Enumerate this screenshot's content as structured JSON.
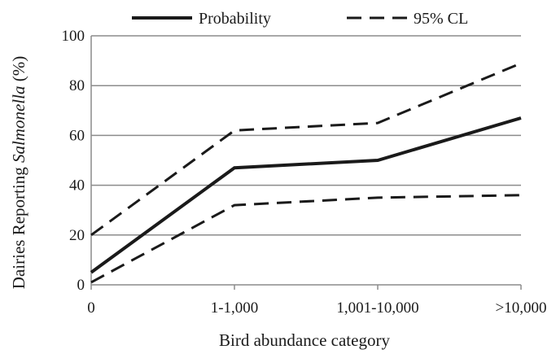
{
  "chart_data": {
    "type": "line",
    "categories": [
      "0",
      "1-1,000",
      "1,001-10,000",
      ">10,000"
    ],
    "series": [
      {
        "name": "Probability",
        "values": [
          5,
          47,
          50,
          67
        ],
        "style": "solid"
      },
      {
        "name": "95% CL",
        "values": [
          20,
          62,
          65,
          89
        ],
        "style": "dashed"
      },
      {
        "name": "",
        "values": [
          1,
          32,
          35,
          36
        ],
        "style": "dashed"
      }
    ],
    "legend": [
      "Probability",
      "95% CL"
    ],
    "legend_position": "top-center",
    "xlabel": "Bird abundance category",
    "ylabel_prefix": "Dairies Reporting ",
    "ylabel_italic": "Salmonella",
    "ylabel_suffix": " (%)",
    "ylim": [
      0,
      100
    ],
    "yticks": [
      0,
      20,
      40,
      60,
      80,
      100
    ],
    "grid": true,
    "colors": {
      "line": "#1a1a1a",
      "grid": "#8c8c8c",
      "axis": "#8c8c8c"
    }
  }
}
